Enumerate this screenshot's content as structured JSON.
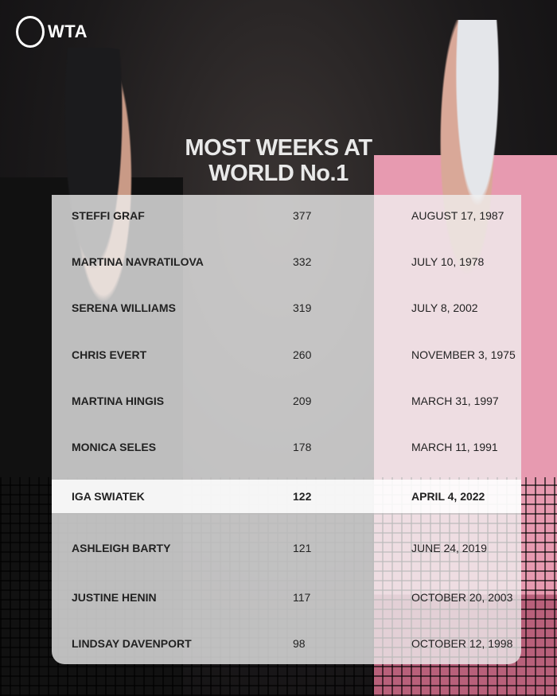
{
  "brand": "WTA",
  "title_line1": "MOST WEEKS AT",
  "title_line2": "WORLD No.1",
  "highlight_color": "#ffffff",
  "rows": [
    {
      "name": "STEFFI GRAF",
      "weeks": "377",
      "date": "AUGUST 17, 1987"
    },
    {
      "name": "MARTINA NAVRATILOVA",
      "weeks": "332",
      "date": "JULY 10, 1978"
    },
    {
      "name": "SERENA WILLIAMS",
      "weeks": "319",
      "date": "JULY 8, 2002"
    },
    {
      "name": "CHRIS EVERT",
      "weeks": "260",
      "date": "NOVEMBER 3, 1975"
    },
    {
      "name": "MARTINA HINGIS",
      "weeks": "209",
      "date": "MARCH 31, 1997"
    },
    {
      "name": "MONICA SELES",
      "weeks": "178",
      "date": "MARCH 11, 1991"
    },
    {
      "name": "IGA SWIATEK",
      "weeks": "122",
      "date": "APRIL 4, 2022",
      "highlighted": true
    },
    {
      "name": "ASHLEIGH BARTY",
      "weeks": "121",
      "date": "JUNE 24, 2019"
    },
    {
      "name": "JUSTINE HENIN",
      "weeks": "117",
      "date": "OCTOBER 20, 2003"
    },
    {
      "name": "LINDSAY DAVENPORT",
      "weeks": "98",
      "date": "OCTOBER 12, 1998"
    }
  ]
}
